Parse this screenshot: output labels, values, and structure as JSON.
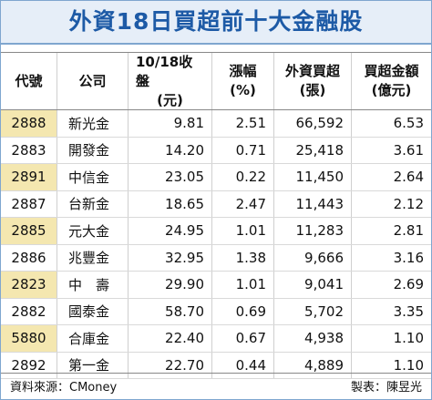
{
  "header": {
    "title": "外資18日買超前十大金融股"
  },
  "table": {
    "columns": [
      [
        "代號"
      ],
      [
        "公司"
      ],
      [
        "10/18收盤",
        "(元)"
      ],
      [
        "漲幅",
        "(%)"
      ],
      [
        "外資買超",
        "(張)"
      ],
      [
        "買超金額",
        "(億元)"
      ]
    ],
    "rows": [
      [
        "2888",
        "新光金",
        "9.81",
        "2.51",
        "66,592",
        "6.53"
      ],
      [
        "2883",
        "開發金",
        "14.20",
        "0.71",
        "25,418",
        "3.61"
      ],
      [
        "2891",
        "中信金",
        "23.05",
        "0.22",
        "11,450",
        "2.64"
      ],
      [
        "2887",
        "台新金",
        "18.65",
        "2.47",
        "11,443",
        "2.12"
      ],
      [
        "2885",
        "元大金",
        "24.95",
        "1.01",
        "11,283",
        "2.81"
      ],
      [
        "2886",
        "兆豐金",
        "32.95",
        "1.38",
        "9,666",
        "3.16"
      ],
      [
        "2823",
        "中　壽",
        "29.90",
        "1.01",
        "9,041",
        "2.69"
      ],
      [
        "2882",
        "國泰金",
        "58.70",
        "0.69",
        "5,702",
        "3.35"
      ],
      [
        "5880",
        "合庫金",
        "22.40",
        "0.67",
        "4,938",
        "1.10"
      ],
      [
        "2892",
        "第一金",
        "22.70",
        "0.44",
        "4,889",
        "1.10"
      ]
    ]
  },
  "footer": {
    "source": "資料來源：CMoney",
    "author": "製表：陳昱光"
  }
}
